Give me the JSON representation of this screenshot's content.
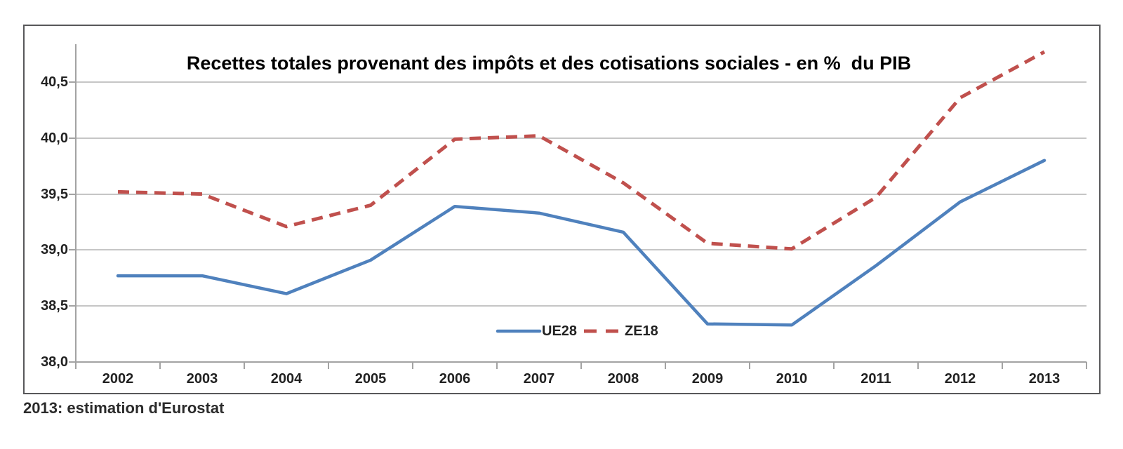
{
  "chart_data": {
    "type": "line",
    "title": "Recettes totales provenant des impôts et des cotisations sociales - en %  du PIB",
    "categories": [
      "2002",
      "2003",
      "2004",
      "2005",
      "2006",
      "2007",
      "2008",
      "2009",
      "2010",
      "2011",
      "2012",
      "2013"
    ],
    "series": [
      {
        "name": "UE28",
        "color": "#4F81BD",
        "style": "solid",
        "values": [
          38.77,
          38.77,
          38.61,
          38.91,
          39.39,
          39.33,
          39.16,
          38.34,
          38.33,
          38.86,
          39.43,
          39.8
        ]
      },
      {
        "name": "ZE18",
        "color": "#C0504D",
        "style": "dashed",
        "values": [
          39.52,
          39.5,
          39.21,
          39.4,
          39.99,
          40.02,
          39.6,
          39.06,
          39.01,
          39.47,
          40.36,
          40.77
        ]
      }
    ],
    "y_ticks": [
      "40,5",
      "40,0",
      "39,5",
      "39,0",
      "38,5",
      "38,0"
    ],
    "y_tick_values": [
      40.5,
      40.0,
      39.5,
      39.0,
      38.5,
      38.0
    ],
    "ylim": [
      38.0,
      40.83
    ],
    "xlabel": "",
    "ylabel": "",
    "grid": true,
    "legend_position": "bottom-center-inside",
    "colors": {
      "gridline": "#c6c6c6",
      "axis": "#a3a3a3",
      "frame_border": "#58585a",
      "text": "#222222"
    }
  },
  "footnote": "2013: estimation d'Eurostat"
}
